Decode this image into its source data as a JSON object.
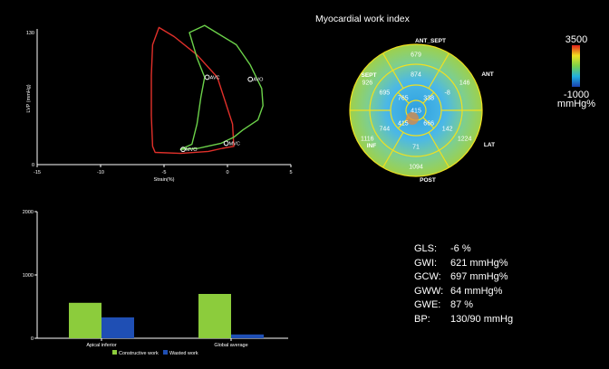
{
  "colors": {
    "background": "#000000",
    "axis": "#ffffff",
    "constructive": "#8ccc3c",
    "wasted": "#1f4fb4",
    "loop_red": "#e0302a",
    "loop_green": "#6cd24a",
    "ring_line": "#f0e020"
  },
  "chart_data": [
    {
      "type": "line",
      "xlabel": "Strain(%)",
      "ylabel": "LVP (mmHg)",
      "xlim": [
        -15,
        5
      ],
      "ylim": [
        0,
        130
      ],
      "x_ticks": [
        "-15",
        "-10",
        "-5",
        "0",
        "5"
      ],
      "y_ticks": [
        "130",
        "0"
      ],
      "series": [
        {
          "color": "#e0302a",
          "x": [
            -0.8,
            -2.4,
            -4.2,
            -5.4,
            -5.9,
            -6.0,
            -6.0,
            -5.9,
            -5.7,
            -3.7,
            -1.5,
            -0.4,
            0.5,
            0.4,
            -0.8
          ],
          "y": [
            86,
            108,
            126,
            135,
            118,
            88,
            48,
            18,
            12,
            11,
            13,
            16,
            18,
            40,
            86
          ]
        },
        {
          "color": "#6cd24a",
          "x": [
            -1.8,
            -2.4,
            -3.0,
            -1.8,
            0.7,
            1.8,
            2.7,
            2.8,
            2.4,
            1.2,
            0.5,
            -0.5,
            -1.6,
            -2.3,
            -3.7,
            -2.8,
            -2.4,
            -2.1,
            -1.8
          ],
          "y": [
            86,
            105,
            130,
            137,
            118,
            98,
            75,
            58,
            44,
            34,
            27,
            21,
            18,
            16,
            15,
            20,
            40,
            66,
            86
          ]
        }
      ],
      "annotations": [
        {
          "text": "AVC",
          "x": -1.6,
          "y": 86
        },
        {
          "text": "AVO",
          "x": 1.8,
          "y": 84
        },
        {
          "text": "MVC",
          "x": -0.1,
          "y": 21
        },
        {
          "text": "MVO",
          "x": -3.5,
          "y": 15
        }
      ]
    },
    {
      "type": "bar",
      "categories": [
        "Apical inferior",
        "Global average"
      ],
      "series": [
        {
          "name": "Constructive work",
          "color": "#8ccc3c",
          "values": [
            560,
            700
          ]
        },
        {
          "name": "Wasted work",
          "color": "#1f4fb4",
          "values": [
            330,
            60
          ]
        }
      ],
      "ylim": [
        0,
        2000
      ],
      "y_ticks": [
        "0",
        "1000",
        "2000"
      ],
      "legend": "bottom"
    }
  ],
  "bullseye": {
    "title": "Myocardial work index",
    "wall_labels": [
      "ANT_SEPT",
      "ANT",
      "LAT",
      "POST",
      "INF",
      "SEPT"
    ],
    "basal": [
      "679",
      "146",
      "1224",
      "1094",
      "1116",
      "926"
    ],
    "mid": [
      "874",
      "-8",
      "142",
      "71",
      "744",
      "695"
    ],
    "apical": [
      "765",
      "338",
      "666",
      "415"
    ],
    "apex": "415",
    "scale_max": "3500",
    "scale_min": "-1000",
    "scale_unit": "mmHg%"
  },
  "metrics": [
    {
      "label": "GLS:",
      "value": "-6 %"
    },
    {
      "label": "GWI:",
      "value": "621 mmHg%"
    },
    {
      "label": "GCW:",
      "value": "697 mmHg%"
    },
    {
      "label": "GWW:",
      "value": "64 mmHg%"
    },
    {
      "label": "GWE:",
      "value": "87 %"
    },
    {
      "label": "BP:",
      "value": "130/90 mmHg"
    }
  ]
}
